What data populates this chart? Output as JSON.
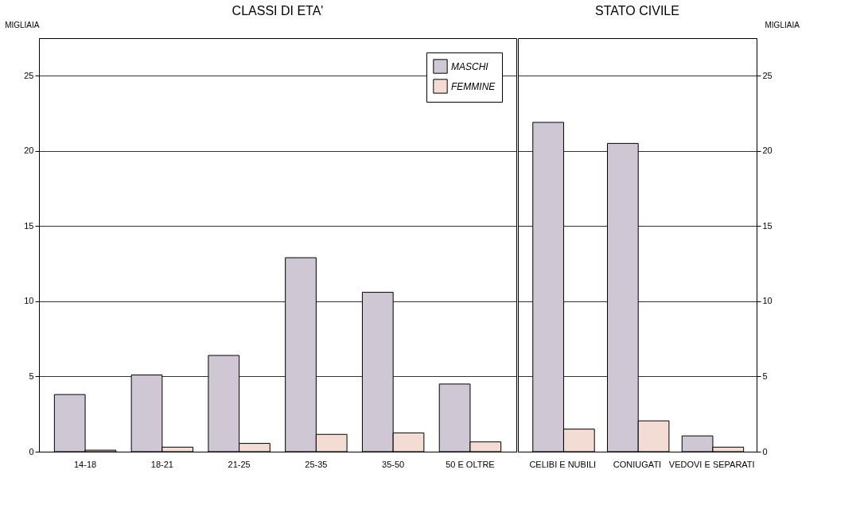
{
  "chart_data": [
    {
      "type": "bar",
      "title": "CLASSI DI ETA'",
      "ylabel": "MIGLIAIA",
      "categories": [
        "14-18",
        "18-21",
        "21-25",
        "25-35",
        "35-50",
        "50 E OLTRE"
      ],
      "series": [
        {
          "name": "MASCHI",
          "color": "#cfc7d3",
          "values": [
            3.8,
            5.1,
            6.4,
            12.9,
            10.6,
            4.5
          ]
        },
        {
          "name": "FEMMINE",
          "color": "#f3dcd3",
          "values": [
            0.1,
            0.3,
            0.55,
            1.15,
            1.25,
            0.65
          ]
        }
      ],
      "ylim": [
        0,
        27.5
      ],
      "yticks": [
        0,
        5,
        10,
        15,
        20,
        25
      ],
      "grid": "y",
      "legend": "top right"
    },
    {
      "type": "bar",
      "title": "STATO CIVILE",
      "y2label": "MIGLIAIA",
      "categories": [
        "CELIBI E NUBILI",
        "CONIUGATI",
        "VEDOVI E SEPARATI"
      ],
      "series": [
        {
          "color": "#cfc7d3",
          "values": [
            21.9,
            20.5,
            1.05
          ],
          "axis": "y2"
        },
        {
          "color": "#f3dcd3",
          "values": [
            1.5,
            2.05,
            0.3
          ],
          "axis": "y2"
        }
      ],
      "y2lim": [
        0,
        27.5
      ],
      "y2ticks": [
        0,
        5,
        10,
        15,
        20,
        25
      ],
      "grid": "y"
    }
  ]
}
